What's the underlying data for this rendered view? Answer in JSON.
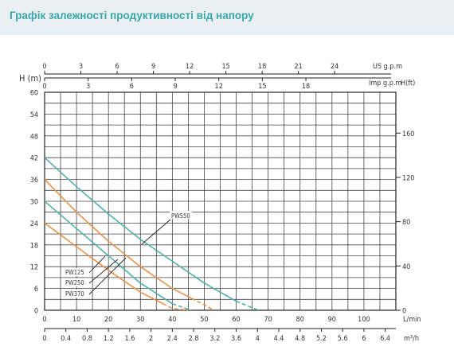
{
  "header": {
    "title": "Графік залежності продуктивності від напору"
  },
  "chart_data": {
    "type": "line",
    "axes": {
      "left": {
        "label": "H (m)",
        "ticks": [
          0,
          6,
          12,
          18,
          24,
          30,
          36,
          42,
          48,
          54,
          60
        ],
        "range": [
          0,
          60
        ]
      },
      "right": {
        "label": "",
        "ticks": [
          0,
          40,
          80,
          120,
          160
        ]
      },
      "bottom_lmin": {
        "label": "L/min",
        "ticks": [
          0,
          10,
          20,
          30,
          40,
          50,
          60,
          70,
          80,
          90,
          100
        ],
        "range": [
          0,
          110
        ]
      },
      "bottom_m3h": {
        "label": "m³/h",
        "ticks": [
          "0",
          "0.4",
          "0.8",
          "1.2",
          "1.6",
          "2",
          "2.4",
          "2.8",
          "3.2",
          "3.6",
          "4",
          "4.4",
          "4.8",
          "5.2",
          "5.6",
          "6",
          "6.4"
        ]
      },
      "top_us": {
        "label": "US g.p.m",
        "ticks": [
          0,
          3,
          6,
          9,
          12,
          15,
          18,
          21,
          24
        ]
      },
      "top_imp": {
        "label": "Imp g.p.m",
        "ticks": [
          0,
          3,
          6,
          9,
          12,
          15,
          18
        ]
      },
      "top_hft": {
        "label": "H(ft)"
      }
    },
    "grid": true,
    "series": [
      {
        "name": "PW125",
        "color": "#e8914a",
        "x": [
          0,
          10,
          20,
          30,
          40,
          45
        ],
        "y": [
          24,
          17.5,
          11,
          5,
          0.5,
          0
        ],
        "dashed_from_x": 37
      },
      {
        "name": "PW250",
        "color": "#4fb0a8",
        "x": [
          0,
          10,
          20,
          30,
          40,
          46
        ],
        "y": [
          30,
          22.5,
          15,
          7.5,
          1.8,
          0
        ],
        "dashed_from_x": 40
      },
      {
        "name": "PW370",
        "color": "#e8914a",
        "x": [
          0,
          10,
          20,
          30,
          40,
          50,
          53
        ],
        "y": [
          36,
          27,
          19,
          12,
          6,
          1.5,
          0
        ],
        "dashed_from_x": 46
      },
      {
        "name": "PW550",
        "color": "#4fb0a8",
        "x": [
          0,
          10,
          20,
          30,
          40,
          50,
          60,
          67
        ],
        "y": [
          42,
          34,
          26.5,
          19.5,
          13.5,
          7.5,
          2.5,
          0
        ],
        "dashed_from_x": 60
      }
    ],
    "annotations": [
      {
        "text": "PW550",
        "pointer_to_series": "PW550"
      },
      {
        "text": "PW125",
        "pointer_to_series": "PW125"
      },
      {
        "text": "PW250",
        "pointer_to_series": "PW250"
      },
      {
        "text": "PW370",
        "pointer_to_series": "PW370"
      }
    ]
  }
}
